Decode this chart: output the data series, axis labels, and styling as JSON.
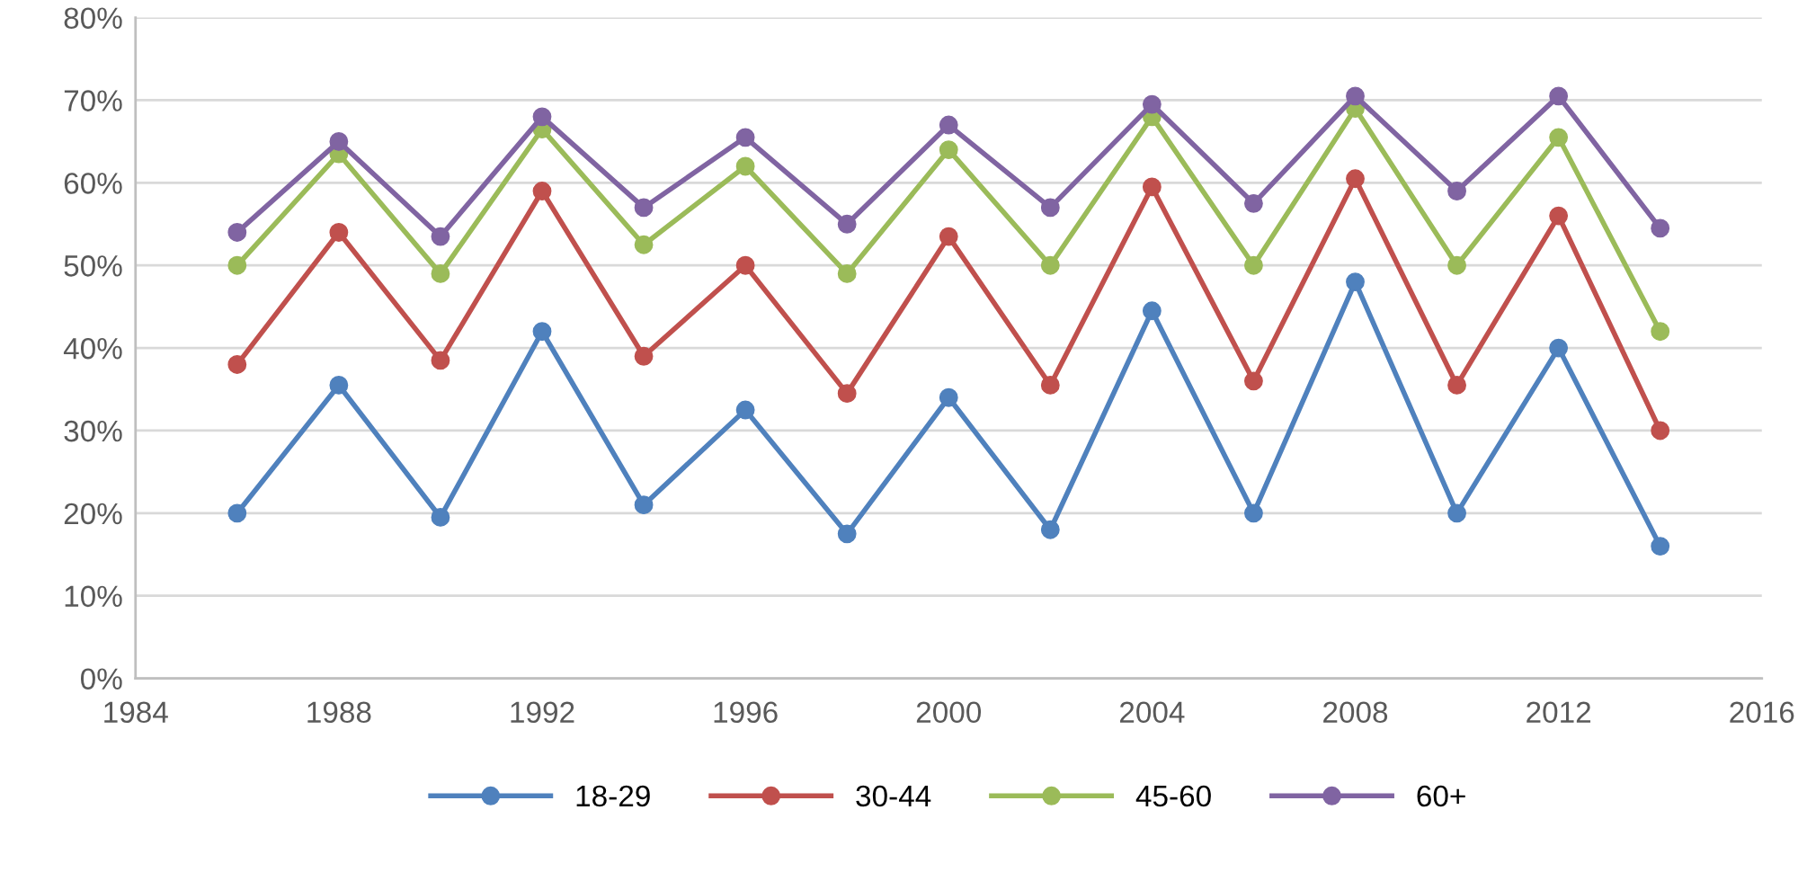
{
  "chart_data": {
    "type": "line",
    "x": [
      1986,
      1988,
      1990,
      1992,
      1994,
      1996,
      1998,
      2000,
      2002,
      2004,
      2006,
      2008,
      2010,
      2012,
      2014
    ],
    "series": [
      {
        "name": "18-29",
        "color": "#4f81bd",
        "values": [
          20,
          35.5,
          19.5,
          42,
          21,
          32.5,
          17.5,
          34,
          18,
          44.5,
          20,
          48,
          20,
          40,
          16
        ]
      },
      {
        "name": "30-44",
        "color": "#c0504d",
        "values": [
          38,
          54,
          38.5,
          59,
          39,
          50,
          34.5,
          53.5,
          35.5,
          59.5,
          36,
          60.5,
          35.5,
          56,
          30
        ]
      },
      {
        "name": "45-60",
        "color": "#9bbb59",
        "values": [
          50,
          63.5,
          49,
          66.5,
          52.5,
          62,
          49,
          64,
          50,
          68,
          50,
          69,
          50,
          65.5,
          42
        ]
      },
      {
        "name": "60+",
        "color": "#8064a2",
        "values": [
          54,
          65,
          53.5,
          68,
          57,
          65.5,
          55,
          67,
          57,
          69.5,
          57.5,
          70.5,
          59,
          70.5,
          54.5
        ]
      }
    ],
    "xlim": [
      1984,
      2016
    ],
    "xticks": [
      1984,
      1988,
      1992,
      1996,
      2000,
      2004,
      2008,
      2012,
      2016
    ],
    "ylim": [
      0,
      80
    ],
    "yticks": [
      {
        "value": 0,
        "label": "0%"
      },
      {
        "value": 10,
        "label": "10%"
      },
      {
        "value": 20,
        "label": "20%"
      },
      {
        "value": 30,
        "label": "30%"
      },
      {
        "value": 40,
        "label": "40%"
      },
      {
        "value": 50,
        "label": "50%"
      },
      {
        "value": 60,
        "label": "60%"
      },
      {
        "value": 70,
        "label": "70%"
      },
      {
        "value": 80,
        "label": "80%"
      }
    ],
    "grid": "y",
    "legend": "bottom",
    "marker": "circle",
    "line_style": "solid"
  }
}
